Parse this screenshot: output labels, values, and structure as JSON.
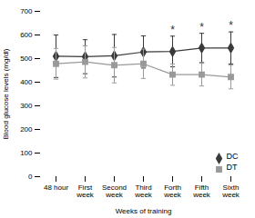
{
  "chart_data": {
    "type": "line",
    "categories": [
      "48 hour",
      "First\nweek",
      "Second\nweek",
      "Third\nweek",
      "Forth\nweek",
      "Fifth\nweek",
      "Sixth\nweek"
    ],
    "series": [
      {
        "name": "DC",
        "color": "#3a3a3a",
        "marker": "diamond",
        "values": [
          510,
          508,
          512,
          528,
          530,
          545,
          545
        ],
        "errors": [
          90,
          72,
          90,
          68,
          65,
          62,
          68
        ]
      },
      {
        "name": "DT",
        "color": "#999999",
        "marker": "square",
        "values": [
          478,
          486,
          472,
          478,
          432,
          432,
          422
        ],
        "errors": [
          65,
          68,
          75,
          62,
          45,
          48,
          50
        ]
      }
    ],
    "xlabel": "Weeks of training",
    "ylabel": "Blood glucose levels (mg/dl)",
    "ylim": [
      0,
      700
    ],
    "yticks": [
      0,
      100,
      200,
      300,
      400,
      500,
      600,
      700
    ],
    "legend": "lower right",
    "annotations": [
      {
        "text": "*",
        "series": "DC",
        "category": "Forth\nweek"
      },
      {
        "text": "*",
        "series": "DC",
        "category": "Fifth\nweek"
      },
      {
        "text": "*",
        "series": "DC",
        "category": "Sixth\nweek"
      }
    ]
  }
}
